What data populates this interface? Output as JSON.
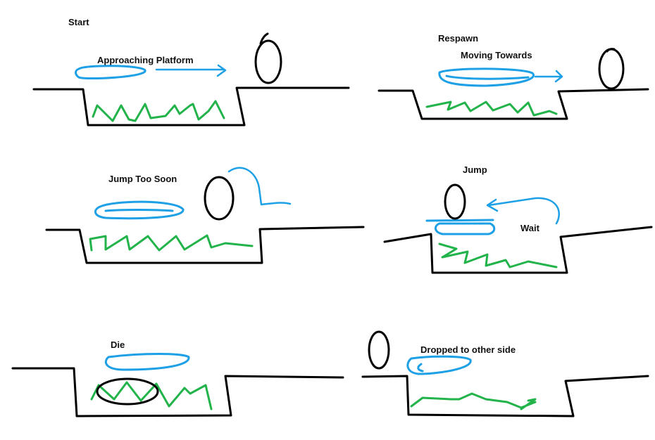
{
  "labels": {
    "start": "Start",
    "approaching_platform": "Approaching Platform",
    "respawn": "Respawn",
    "moving_towards": "Moving Towards",
    "jump_too_soon": "Jump Too Soon",
    "jump": "Jump",
    "wait": "Wait",
    "die": "Die",
    "dropped_to_other_side": "Dropped to other side"
  },
  "colors": {
    "ground": "#000000",
    "player": "#000000",
    "platform": "#1ea0e6",
    "acid": "#22b34a",
    "background": "#ffffff"
  },
  "panels": [
    {
      "caption_keys": [
        "start",
        "approaching_platform"
      ]
    },
    {
      "caption_keys": [
        "respawn",
        "moving_towards"
      ]
    },
    {
      "caption_keys": [
        "jump_too_soon"
      ]
    },
    {
      "caption_keys": [
        "jump",
        "wait"
      ]
    },
    {
      "caption_keys": [
        "die"
      ]
    },
    {
      "caption_keys": [
        "dropped_to_other_side"
      ]
    }
  ]
}
